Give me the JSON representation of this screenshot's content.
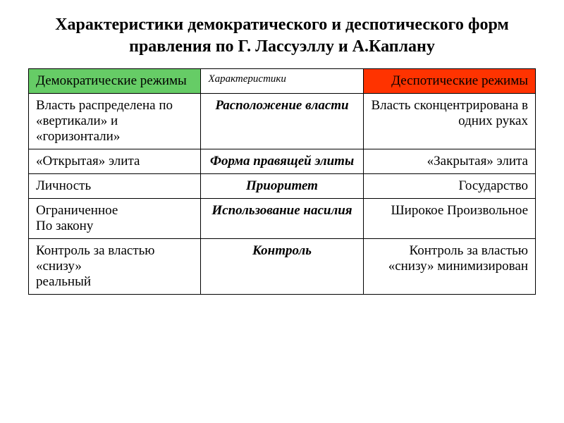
{
  "title": "Характеристики демократического и деспотического форм правления по Г. Лассуэллу и А.Каплану",
  "table": {
    "header": {
      "left": "Демократические режимы",
      "center": "Характеристики",
      "right": "Деспотические режимы"
    },
    "rows": [
      {
        "left": "Власть распределена по «вертикали» и «горизонтали»",
        "center": "Расположение власти",
        "right": "Власть сконцентрирована в одних руках"
      },
      {
        "left": "«Открытая» элита",
        "center": "Форма правящей элиты",
        "right": "«Закрытая» элита"
      },
      {
        "left": "Личность",
        "center": "Приоритет",
        "right": "Государство"
      },
      {
        "left": "Ограниченное\nПо закону",
        "center": "Использование насилия",
        "right": "Широкое Произвольное"
      },
      {
        "left": "Контроль за властью «снизу»\nреальный",
        "center": "Контроль",
        "right": "Контроль за властью «снизу» минимизирован"
      }
    ],
    "colors": {
      "header_left_bg": "#66cc66",
      "header_right_bg": "#ff3300",
      "border": "#000000",
      "text": "#000000",
      "background": "#ffffff"
    }
  }
}
